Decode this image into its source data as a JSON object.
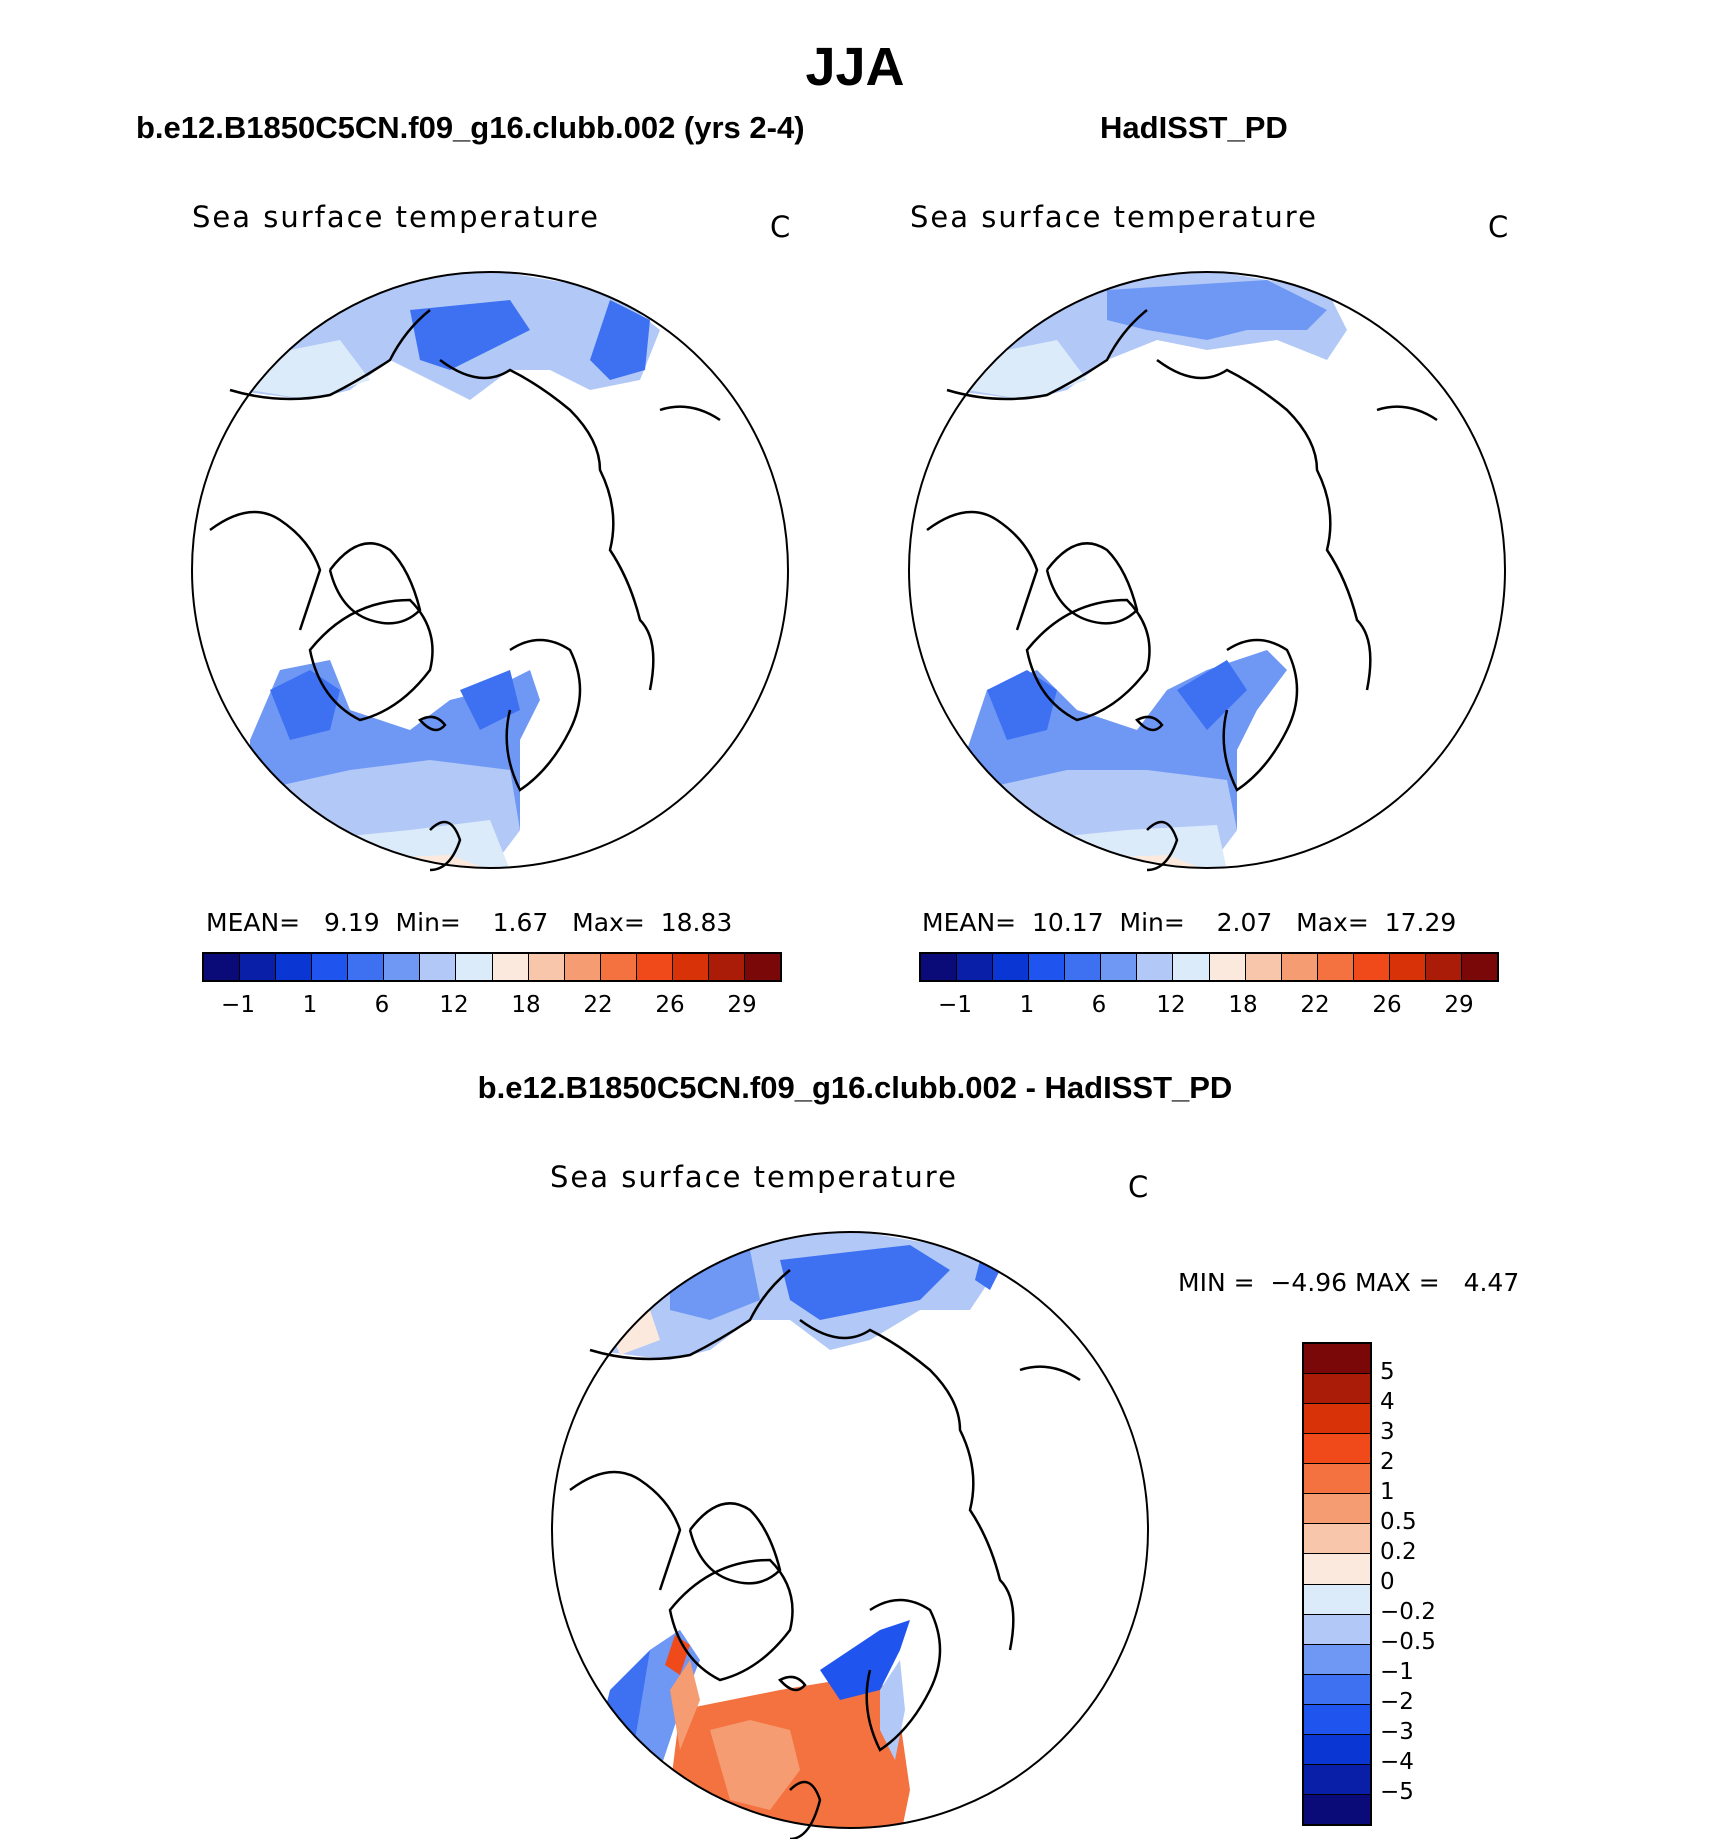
{
  "figure": {
    "season": "JJA",
    "model_title": "b.e12.B1850C5CN.f09_g16.clubb.002 (yrs 2-4)",
    "obs_title": "HadISST_PD",
    "diff_title": "b.e12.B1850C5CN.f09_g16.clubb.002 - HadISST_PD"
  },
  "panels": {
    "model": {
      "variable": "Sea surface temperature",
      "units": "C",
      "mean_label": "MEAN=",
      "mean": "9.19",
      "min_label": "Min=",
      "min": "1.67",
      "max_label": "Max=",
      "max": "18.83"
    },
    "obs": {
      "variable": "Sea surface temperature",
      "units": "C",
      "mean_label": "MEAN=",
      "mean": "10.17",
      "min_label": "Min=",
      "min": "2.07",
      "max_label": "Max=",
      "max": "17.29"
    },
    "diff": {
      "variable": "Sea surface temperature",
      "units": "C",
      "min_label": "MIN =",
      "min": "−4.96",
      "max_label": "MAX =",
      "max": "4.47"
    }
  },
  "colorbars": {
    "abs": {
      "colors": [
        "#0a0a78",
        "#0a1fa8",
        "#0a36d4",
        "#1f55ee",
        "#3d71f2",
        "#6f98f5",
        "#b2c8f7",
        "#dcebfa",
        "#fbe9dd",
        "#f7c6ab",
        "#f59c73",
        "#f3723f",
        "#f04a1a",
        "#d83208",
        "#aa1c08",
        "#7a0808"
      ],
      "tick_labels": [
        "−1",
        "1",
        "6",
        "12",
        "18",
        "22",
        "26",
        "29"
      ]
    },
    "diff": {
      "colors": [
        "#7a0808",
        "#aa1c08",
        "#d83208",
        "#f04a1a",
        "#f3723f",
        "#f59c73",
        "#f7c6ab",
        "#fbe9dd",
        "#dcebfa",
        "#b2c8f7",
        "#6f98f5",
        "#3d71f2",
        "#1f55ee",
        "#0a36d4",
        "#0a1fa8",
        "#0a0a78"
      ],
      "tick_labels": [
        "5",
        "4",
        "3",
        "2",
        "1",
        "0.5",
        "0.2",
        "0",
        "−0.2",
        "−0.5",
        "−1",
        "−2",
        "−3",
        "−4",
        "−5"
      ]
    }
  }
}
